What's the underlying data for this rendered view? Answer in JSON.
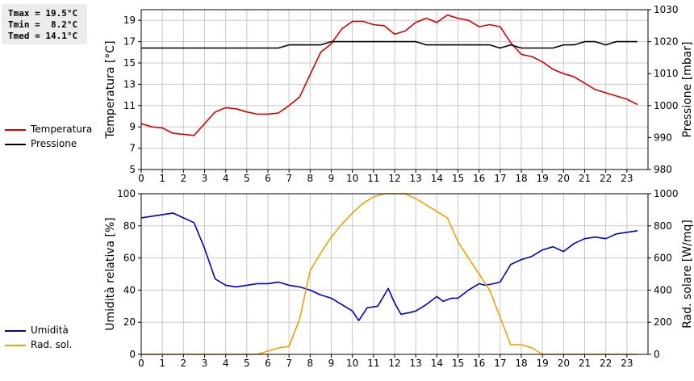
{
  "stats": {
    "tmax": "Tmax = 19.5°C",
    "tmin": "Tmin =  8.2°C",
    "tmed": "Tmed = 14.1°C"
  },
  "colors": {
    "temperature": "#d40000",
    "pressure": "#000000",
    "humidity": "#0000c8",
    "solar": "#f0a000",
    "grid": "#c8c8c8"
  },
  "chart_data": [
    {
      "type": "line",
      "legend": [
        "Temperatura",
        "Pressione"
      ],
      "grid": true,
      "xlim": [
        0,
        24
      ],
      "x_ticks": [
        0,
        1,
        2,
        3,
        4,
        5,
        6,
        7,
        8,
        9,
        10,
        11,
        12,
        13,
        14,
        15,
        16,
        17,
        18,
        19,
        20,
        21,
        22,
        23
      ],
      "y_left_label": "Temperatura [°C]",
      "y_left_lim": [
        5,
        20
      ],
      "y_left_ticks": [
        5,
        7,
        9,
        11,
        13,
        15,
        17,
        19
      ],
      "y_right_label": "Pressione [mbar]",
      "y_right_lim": [
        980,
        1030
      ],
      "y_right_ticks": [
        980,
        990,
        1000,
        1010,
        1020,
        1030
      ],
      "series": [
        {
          "name": "Temperatura",
          "axis": "left",
          "x": [
            0,
            0.5,
            1,
            1.5,
            2,
            2.5,
            3,
            3.5,
            4,
            4.5,
            5,
            5.5,
            6,
            6.5,
            7,
            7.5,
            8,
            8.5,
            9,
            9.5,
            10,
            10.5,
            11,
            11.5,
            12,
            12.5,
            13,
            13.5,
            14,
            14.5,
            15,
            15.5,
            16,
            16.5,
            17,
            17.5,
            18,
            18.5,
            19,
            19.5,
            20,
            20.5,
            21,
            21.5,
            22,
            22.5,
            23,
            23.5
          ],
          "values": [
            9.3,
            9.0,
            8.9,
            8.4,
            8.3,
            8.2,
            9.3,
            10.4,
            10.8,
            10.7,
            10.4,
            10.2,
            10.2,
            10.3,
            11.0,
            11.8,
            13.9,
            16.0,
            16.8,
            18.2,
            18.9,
            18.9,
            18.6,
            18.5,
            17.7,
            18.0,
            18.8,
            19.2,
            18.8,
            19.5,
            19.2,
            19.0,
            18.4,
            18.6,
            18.4,
            16.9,
            15.8,
            15.6,
            15.1,
            14.4,
            14.0,
            13.7,
            13.1,
            12.5,
            12.2,
            11.9,
            11.6,
            11.1
          ]
        },
        {
          "name": "Pressione",
          "axis": "right",
          "x": [
            0,
            1,
            2,
            3,
            4,
            5,
            6,
            6.5,
            7,
            7.5,
            8,
            8.5,
            9,
            9.5,
            10,
            11,
            12,
            13,
            13.5,
            14,
            15,
            16,
            16.5,
            17,
            17.5,
            18,
            19,
            19.5,
            20,
            20.5,
            21,
            21.5,
            22,
            22.5,
            23,
            23.5
          ],
          "values": [
            1018,
            1018,
            1018,
            1018,
            1018,
            1018,
            1018,
            1018,
            1019,
            1019,
            1019,
            1019,
            1020,
            1020,
            1020,
            1020,
            1020,
            1020,
            1019,
            1019,
            1019,
            1019,
            1019,
            1018,
            1019,
            1018,
            1018,
            1018,
            1019,
            1019,
            1020,
            1020,
            1019,
            1020,
            1020,
            1020
          ]
        }
      ]
    },
    {
      "type": "line",
      "legend": [
        "Umidità",
        "Rad. sol."
      ],
      "grid": true,
      "xlim": [
        0,
        24
      ],
      "x_ticks": [
        0,
        1,
        2,
        3,
        4,
        5,
        6,
        7,
        8,
        9,
        10,
        11,
        12,
        13,
        14,
        15,
        16,
        17,
        18,
        19,
        20,
        21,
        22,
        23
      ],
      "y_left_label": "Umidità relativa [%]",
      "y_left_lim": [
        0,
        100
      ],
      "y_left_ticks": [
        0,
        20,
        40,
        60,
        80,
        100
      ],
      "y_right_label": "Rad. solare [W/mq]",
      "y_right_lim": [
        0,
        1000
      ],
      "y_right_ticks": [
        0,
        200,
        400,
        600,
        800,
        1000
      ],
      "series": [
        {
          "name": "Umidità",
          "axis": "left",
          "x": [
            0,
            0.5,
            1,
            1.5,
            2,
            2.5,
            3,
            3.5,
            4,
            4.5,
            5,
            5.5,
            6,
            6.5,
            7,
            7.5,
            8,
            8.5,
            9,
            9.5,
            10,
            10.3,
            10.7,
            11.2,
            11.7,
            12,
            12.3,
            12.7,
            13,
            13.5,
            14,
            14.3,
            14.7,
            15,
            15.5,
            16,
            16.3,
            16.7,
            17,
            17.5,
            18,
            18.5,
            19,
            19.5,
            20,
            20.5,
            21,
            21.5,
            22,
            22.5,
            23,
            23.5
          ],
          "values": [
            85,
            86,
            87,
            88,
            85,
            82,
            66,
            47,
            43,
            42,
            43,
            44,
            44,
            45,
            43,
            42,
            40,
            37,
            35,
            31,
            27,
            21,
            29,
            30,
            41,
            32,
            25,
            26,
            27,
            31,
            36,
            33,
            35,
            35,
            40,
            44,
            43,
            44,
            45,
            56,
            59,
            61,
            65,
            67,
            64,
            69,
            72,
            73,
            72,
            75,
            76,
            77
          ]
        },
        {
          "name": "Rad. sol.",
          "axis": "right",
          "x": [
            0,
            1,
            2,
            3,
            4,
            5,
            5.5,
            6,
            6.5,
            7,
            7.5,
            8,
            8.5,
            9,
            9.5,
            10,
            10.5,
            11,
            11.5,
            12,
            12.5,
            13,
            13.5,
            14,
            14.5,
            15,
            15.5,
            16,
            16.5,
            17,
            17.5,
            18,
            18.5,
            19,
            19.5,
            20,
            21,
            22,
            23,
            23.5
          ],
          "values": [
            0,
            0,
            0,
            0,
            0,
            0,
            0,
            20,
            40,
            50,
            220,
            520,
            630,
            730,
            810,
            880,
            940,
            980,
            1000,
            1000,
            1000,
            970,
            930,
            890,
            850,
            700,
            600,
            500,
            400,
            230,
            60,
            60,
            40,
            0,
            0,
            0,
            0,
            0,
            0,
            0
          ]
        }
      ]
    }
  ]
}
